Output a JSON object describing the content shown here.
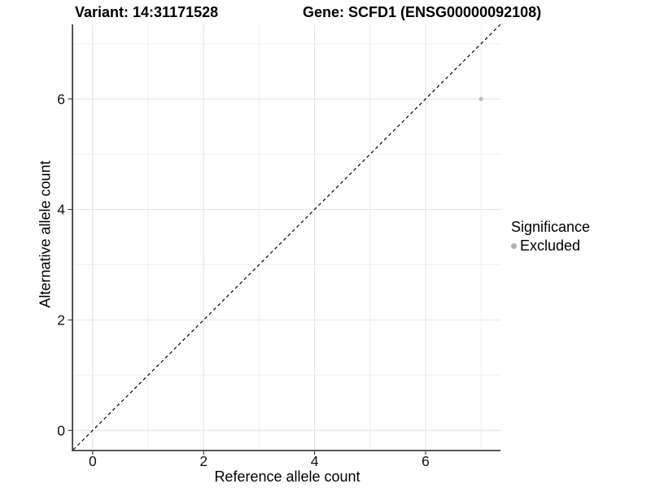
{
  "chart_data": {
    "type": "scatter",
    "title_left": "Variant: 14:31171528",
    "title_right": "Gene: SCFD1 (ENSG00000092108)",
    "xlabel": "Reference allele count",
    "ylabel": "Alternative allele count",
    "xlim": [
      -0.35,
      7.35
    ],
    "ylim": [
      -0.35,
      7.35
    ],
    "x_ticks": [
      0,
      2,
      4,
      6
    ],
    "y_ticks": [
      0,
      2,
      4,
      6
    ],
    "x_minor_gridlines": [
      1,
      3,
      5,
      7
    ],
    "y_minor_gridlines": [
      1,
      3,
      5,
      7
    ],
    "grid": "on",
    "reference_line": {
      "type": "identity",
      "slope": 1,
      "intercept": 0,
      "style": "dashed",
      "color": "#000000"
    },
    "series": [
      {
        "name": "Excluded",
        "marker": "circle",
        "color": "#bcbcbc",
        "points": [
          {
            "x": 7,
            "y": 6
          }
        ]
      }
    ],
    "legend": {
      "title": "Significance",
      "position": "right",
      "items": [
        {
          "label": "Excluded",
          "color": "#b0b0b0",
          "marker": "circle"
        }
      ]
    }
  },
  "colors": {
    "background": "#ffffff",
    "grid_major": "#e4e4e4",
    "grid_minor": "#efefef",
    "axis_line": "#404040",
    "tick_mark": "#333333",
    "tick_label": "#111111",
    "title_text": "#000000",
    "point": "#bcbcbc"
  }
}
